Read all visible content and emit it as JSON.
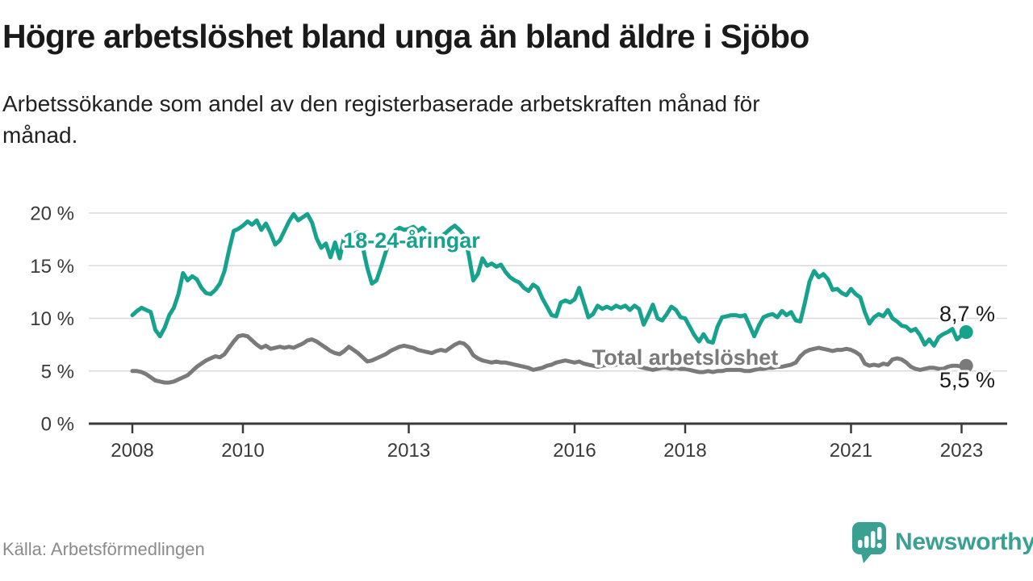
{
  "title": "Högre arbetslöshet bland unga än bland äldre i Sjöbo",
  "subtitle": "Arbetssökande som andel av den registerbaserade arbetskraften månad för\nmånad.",
  "footer": {
    "source": "Källa: Arbetsförmedlingen"
  },
  "logo": {
    "name": "Newsworthy",
    "icon": "newsworthy-speech-bubble-bar-chart-icon",
    "color": "#3aa092"
  },
  "colors": {
    "accent_teal": "#17a28e",
    "line_gray": "#7a7a7a",
    "grid": "#dadada",
    "axis": "#3a3a3a",
    "text_dark": "#1a1a1a",
    "background": "#ffffff"
  },
  "chart_data": {
    "type": "line",
    "title": "Högre arbetslöshet bland unga än bland äldre i Sjöbo",
    "xlabel": "",
    "ylabel": "Arbetssökande som andel av den registerbaserade arbetskraften",
    "x_start_year": 2008,
    "x_step_months": 1,
    "ylim": [
      0,
      21.5
    ],
    "grid": "horizontal",
    "yticks": [
      {
        "value": 0,
        "label": "0 %"
      },
      {
        "value": 5,
        "label": "5 %"
      },
      {
        "value": 10,
        "label": "10 %"
      },
      {
        "value": 15,
        "label": "15 %"
      },
      {
        "value": 20,
        "label": "20 %"
      }
    ],
    "xticks": [
      {
        "value": 2008,
        "label": "2008"
      },
      {
        "value": 2010,
        "label": "2010"
      },
      {
        "value": 2013,
        "label": "2013"
      },
      {
        "value": 2016,
        "label": "2016"
      },
      {
        "value": 2018,
        "label": "2018"
      },
      {
        "value": 2021,
        "label": "2021"
      },
      {
        "value": 2023,
        "label": "2023"
      }
    ],
    "series": [
      {
        "name": "18-24-åringar",
        "color": "#17a28e",
        "end_label": "8,7 %",
        "end_value": 8.7,
        "values": [
          10.3,
          10.7,
          11.0,
          10.8,
          10.6,
          8.9,
          8.3,
          9.1,
          10.3,
          11.0,
          12.3,
          14.3,
          13.6,
          14.0,
          13.7,
          12.9,
          12.4,
          12.3,
          12.7,
          13.3,
          14.5,
          16.5,
          18.3,
          18.5,
          18.8,
          19.2,
          18.9,
          19.3,
          18.4,
          19.0,
          18.1,
          17.0,
          17.4,
          18.3,
          19.2,
          19.9,
          19.3,
          19.6,
          19.9,
          19.1,
          17.6,
          16.7,
          17.1,
          15.8,
          17.2,
          15.7,
          17.8,
          18.2,
          18.0,
          18.2,
          16.8,
          14.8,
          13.3,
          13.6,
          14.9,
          16.3,
          17.6,
          18.3,
          18.6,
          18.4,
          18.5,
          18.7,
          18.3,
          18.6,
          18.2,
          17.8,
          17.5,
          17.8,
          18.1,
          18.5,
          18.8,
          18.4,
          17.9,
          16.1,
          13.6,
          14.2,
          15.7,
          15.0,
          15.2,
          14.9,
          15.1,
          14.4,
          13.9,
          13.6,
          13.4,
          12.9,
          12.6,
          13.2,
          12.9,
          11.9,
          11.1,
          10.3,
          10.2,
          11.5,
          11.7,
          11.5,
          11.8,
          12.9,
          11.5,
          10.1,
          10.4,
          11.2,
          10.9,
          11.1,
          10.9,
          11.2,
          11.0,
          11.2,
          10.8,
          11.2,
          10.9,
          9.4,
          10.3,
          11.3,
          10.0,
          9.8,
          10.4,
          11.1,
          10.8,
          10.1,
          10.0,
          9.2,
          8.4,
          7.8,
          8.5,
          7.8,
          7.7,
          9.2,
          10.1,
          10.2,
          10.3,
          10.3,
          10.2,
          10.3,
          9.3,
          8.3,
          9.3,
          10.1,
          10.3,
          10.4,
          10.1,
          10.7,
          10.3,
          10.6,
          9.8,
          9.7,
          11.5,
          13.5,
          14.5,
          13.9,
          14.2,
          13.7,
          12.7,
          12.8,
          12.4,
          12.2,
          12.8,
          12.3,
          12.0,
          10.6,
          9.5,
          10.1,
          10.4,
          10.2,
          10.8,
          10.0,
          9.7,
          9.3,
          9.2,
          8.8,
          9.0,
          8.4,
          7.5,
          8.0,
          7.4,
          8.2,
          8.5,
          8.7,
          9.0,
          8.0,
          8.4,
          8.7
        ]
      },
      {
        "name": "Total arbetslöshet",
        "color": "#7a7a7a",
        "end_label": "5,5 %",
        "end_value": 5.5,
        "values": [
          5.0,
          5.0,
          4.9,
          4.7,
          4.4,
          4.1,
          4.0,
          3.9,
          3.9,
          4.0,
          4.2,
          4.4,
          4.6,
          5.0,
          5.4,
          5.7,
          6.0,
          6.2,
          6.4,
          6.3,
          6.6,
          7.2,
          7.8,
          8.3,
          8.4,
          8.3,
          7.9,
          7.5,
          7.2,
          7.4,
          7.1,
          7.2,
          7.3,
          7.2,
          7.3,
          7.2,
          7.4,
          7.6,
          7.9,
          8.0,
          7.8,
          7.5,
          7.2,
          6.9,
          6.7,
          6.6,
          6.9,
          7.3,
          7.0,
          6.7,
          6.3,
          5.9,
          6.0,
          6.2,
          6.4,
          6.6,
          6.9,
          7.1,
          7.3,
          7.4,
          7.3,
          7.2,
          7.0,
          6.9,
          6.8,
          6.7,
          6.9,
          7.0,
          6.9,
          7.2,
          7.5,
          7.7,
          7.6,
          7.2,
          6.5,
          6.2,
          6.0,
          5.9,
          5.8,
          5.9,
          5.8,
          5.8,
          5.7,
          5.6,
          5.5,
          5.4,
          5.3,
          5.1,
          5.2,
          5.3,
          5.5,
          5.6,
          5.8,
          5.9,
          6.0,
          5.9,
          5.8,
          5.9,
          5.7,
          5.6,
          5.5,
          5.4,
          5.5,
          5.6,
          5.5,
          5.6,
          5.7,
          5.6,
          5.7,
          5.6,
          5.4,
          5.3,
          5.2,
          5.1,
          5.2,
          5.3,
          5.3,
          5.2,
          5.3,
          5.2,
          5.2,
          5.1,
          5.0,
          4.9,
          4.9,
          5.0,
          4.9,
          5.0,
          5.0,
          5.1,
          5.1,
          5.1,
          5.1,
          5.0,
          5.0,
          5.1,
          5.2,
          5.2,
          5.3,
          5.3,
          5.4,
          5.4,
          5.5,
          5.6,
          5.8,
          6.4,
          6.8,
          7.0,
          7.1,
          7.2,
          7.1,
          7.0,
          6.9,
          7.0,
          7.0,
          7.1,
          7.0,
          6.8,
          6.5,
          5.7,
          5.5,
          5.6,
          5.5,
          5.7,
          5.6,
          6.1,
          6.2,
          6.1,
          5.8,
          5.4,
          5.2,
          5.1,
          5.2,
          5.3,
          5.3,
          5.2,
          5.2,
          5.4,
          5.5,
          5.5,
          5.4,
          5.5
        ]
      }
    ]
  }
}
